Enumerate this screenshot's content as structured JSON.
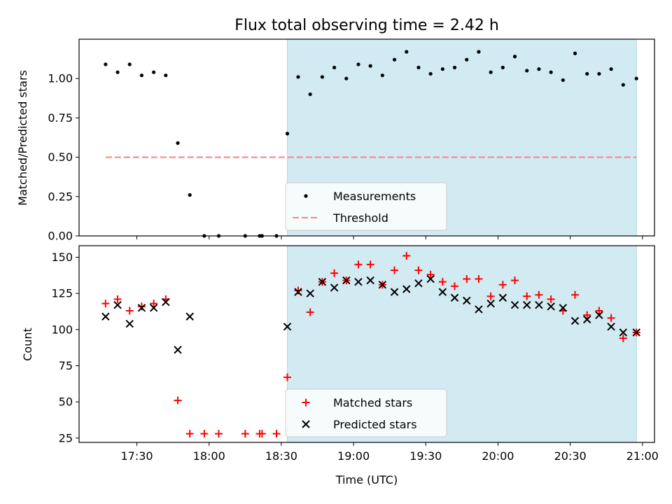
{
  "chart_data": {
    "title": "Flux total observing time = 2.42 h",
    "type": "scatter",
    "xlabel": "Time (UTC)",
    "x_tick_labels": [
      "17:30",
      "18:00",
      "18:30",
      "19:00",
      "19:30",
      "20:00",
      "20:30",
      "21:00"
    ],
    "x_tick_minutes": [
      1050,
      1080,
      1110,
      1140,
      1170,
      1200,
      1230,
      1260
    ],
    "xlim_minutes": [
      1026,
      1265
    ],
    "shaded_region_minutes": [
      1112.5,
      1257.5
    ],
    "shade_color": "#add8e6",
    "panels": [
      {
        "ylabel": "Matched/Predicted stars",
        "ylim": [
          0,
          1.25
        ],
        "y_tick_labels": [
          "0.00",
          "0.25",
          "0.50",
          "0.75",
          "1.00"
        ],
        "y_ticks": [
          0,
          0.25,
          0.5,
          0.75,
          1.0
        ],
        "legend": {
          "position": "lower center"
        },
        "series": [
          {
            "name": "Measurements",
            "marker": "dot",
            "color": "#000000",
            "x": [
              1037,
              1042,
              1047,
              1052,
              1057,
              1062,
              1067,
              1072,
              1078,
              1084,
              1095,
              1101,
              1102,
              1108,
              1112.5,
              1117,
              1122,
              1127,
              1132,
              1137,
              1142,
              1147,
              1152,
              1157,
              1162,
              1167,
              1172,
              1177,
              1182,
              1187,
              1192,
              1197,
              1202,
              1207,
              1212,
              1217,
              1222,
              1227,
              1232,
              1237,
              1242,
              1247,
              1252,
              1257.5
            ],
            "y": [
              1.09,
              1.04,
              1.09,
              1.02,
              1.04,
              1.02,
              0.59,
              0.26,
              0.0,
              0.0,
              0.0,
              0.0,
              0.0,
              0.0,
              0.65,
              1.01,
              0.9,
              1.01,
              1.07,
              1.0,
              1.09,
              1.08,
              1.02,
              1.12,
              1.17,
              1.07,
              1.03,
              1.06,
              1.07,
              1.12,
              1.17,
              1.04,
              1.07,
              1.14,
              1.05,
              1.06,
              1.04,
              0.99,
              1.16,
              1.03,
              1.03,
              1.06,
              0.96,
              1.0
            ]
          },
          {
            "name": "Threshold",
            "type": "line",
            "style": "dashed",
            "color": "#ff8080",
            "x": [
              1037,
              1257.5
            ],
            "y": [
              0.5,
              0.5
            ]
          }
        ]
      },
      {
        "ylabel": "Count",
        "ylim": [
          22,
          158
        ],
        "y_tick_labels": [
          "25",
          "50",
          "75",
          "100",
          "125",
          "150"
        ],
        "y_ticks": [
          25,
          50,
          75,
          100,
          125,
          150
        ],
        "legend": {
          "position": "lower center"
        },
        "series": [
          {
            "name": "Matched stars",
            "marker": "plus",
            "color": "#ff0000",
            "x": [
              1037,
              1042,
              1047,
              1052,
              1057,
              1062,
              1067,
              1072,
              1078,
              1084,
              1095,
              1101,
              1102,
              1108,
              1112.5,
              1117,
              1122,
              1127,
              1132,
              1137,
              1142,
              1147,
              1152,
              1157,
              1162,
              1167,
              1172,
              1177,
              1182,
              1187,
              1192,
              1197,
              1202,
              1207,
              1212,
              1217,
              1222,
              1227,
              1232,
              1237,
              1242,
              1247,
              1252,
              1257.5
            ],
            "y": [
              118,
              121,
              113,
              116,
              118,
              121,
              51,
              28,
              28,
              28,
              28,
              28,
              28,
              28,
              67,
              127,
              112,
              133,
              139,
              134,
              145,
              145,
              131,
              141,
              151,
              141,
              138,
              133,
              130,
              135,
              135,
              123,
              131,
              134,
              123,
              124,
              121,
              113,
              124,
              110,
              113,
              108,
              94,
              98
            ]
          },
          {
            "name": "Predicted stars",
            "marker": "x",
            "color": "#000000",
            "x": [
              1037,
              1042,
              1047,
              1052,
              1057,
              1062,
              1067,
              1072,
              1112.5,
              1117,
              1122,
              1127,
              1132,
              1137,
              1142,
              1147,
              1152,
              1157,
              1162,
              1167,
              1172,
              1177,
              1182,
              1187,
              1192,
              1197,
              1202,
              1207,
              1212,
              1217,
              1222,
              1227,
              1232,
              1237,
              1242,
              1247,
              1252,
              1257.5
            ],
            "y": [
              109,
              117,
              104,
              115,
              115,
              119,
              86,
              109,
              102,
              126,
              125,
              133,
              129,
              134,
              133,
              134,
              131,
              126,
              128,
              132,
              135,
              126,
              122,
              120,
              114,
              118,
              122,
              117,
              117,
              117,
              116,
              115,
              106,
              107,
              110,
              102,
              98,
              98
            ]
          }
        ]
      }
    ]
  }
}
